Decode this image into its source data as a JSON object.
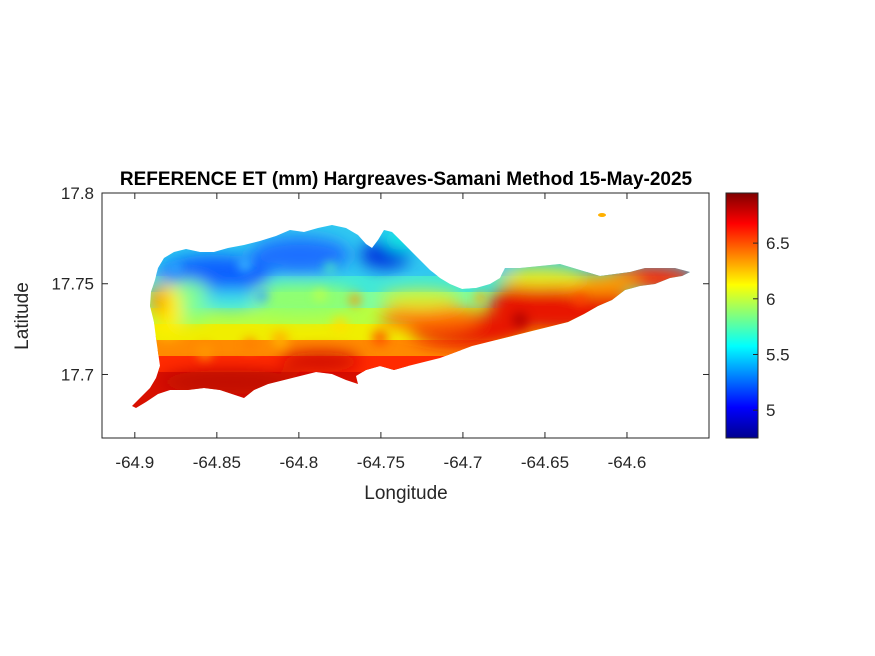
{
  "chart_data": {
    "type": "heatmap",
    "title": "REFERENCE ET (mm) Hargreaves-Samani Method  15-May-2025",
    "xlabel": "Longitude",
    "ylabel": "Latitude",
    "xlim": [
      -64.92,
      -64.55
    ],
    "ylim": [
      17.665,
      17.8
    ],
    "x_ticks": [
      -64.9,
      -64.85,
      -64.8,
      -64.75,
      -64.7,
      -64.65,
      -64.6
    ],
    "x_tick_labels": [
      "-64.9",
      "-64.85",
      "-64.8",
      "-64.75",
      "-64.7",
      "-64.65",
      "-64.6"
    ],
    "y_ticks": [
      17.7,
      17.75,
      17.8
    ],
    "y_tick_labels": [
      "17.7",
      "17.75",
      "17.8"
    ],
    "colorbar": {
      "colormap": "jet",
      "range": [
        4.75,
        6.95
      ],
      "ticks": [
        5,
        5.5,
        6,
        6.5
      ],
      "tick_labels": [
        "5",
        "5.5",
        "6",
        "6.5"
      ]
    },
    "grid": false,
    "description_values": {
      "north_central_min": 5.0,
      "south_coast_max": 6.9,
      "east_end": 6.7
    }
  },
  "colors": {
    "axis": "#262626",
    "title": "#000000",
    "background": "#ffffff"
  }
}
